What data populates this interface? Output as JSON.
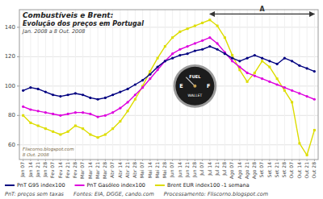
{
  "chart_data": {
    "type": "line",
    "title": [
      "Combustíveis e Brent:",
      "Evolução dos preços em Portugal"
    ],
    "subtitle": "Jan. 2008 a 8 Out. 2008",
    "categories": [
      "Jan 07",
      "Jan 14",
      "Jan 21",
      "Jan 28",
      "Fev 07",
      "Fev 14",
      "Fev 21",
      "Fev 28",
      "Mar 07",
      "Mar 14",
      "Mar 21",
      "Mar 28",
      "Abr 07",
      "Abr 14",
      "Abr 21",
      "Abr 28",
      "Mai 07",
      "Mai 14",
      "Mai 21",
      "Mai 28",
      "Jun 07",
      "Jun 14",
      "Jun 21",
      "Jun 28",
      "Jul 07",
      "Jul 14",
      "Jul 21",
      "Jul 28",
      "Ago 07",
      "Ago 14",
      "Ago 21",
      "Ago 28",
      "Set 07",
      "Set 14",
      "Set 21",
      "Set 28",
      "Out 07",
      "Out 14",
      "Out 21",
      "Out 28"
    ],
    "series": [
      {
        "name": "PnT G95 index100",
        "color": "#000080",
        "marker": "circle",
        "values": [
          97,
          99,
          98,
          96,
          94,
          93,
          94,
          95,
          94,
          92,
          91,
          92,
          94,
          96,
          98,
          101,
          104,
          108,
          113,
          117,
          119,
          121,
          122,
          124,
          125,
          127,
          125,
          122,
          119,
          117,
          119,
          121,
          119,
          117,
          115,
          119,
          117,
          114,
          112,
          110
        ]
      },
      {
        "name": "PnT Gasóleo index100",
        "color": "#dd00dd",
        "marker": "circle",
        "values": [
          86,
          84,
          83,
          82,
          81,
          80,
          81,
          82,
          82,
          81,
          79,
          80,
          82,
          85,
          89,
          94,
          99,
          105,
          111,
          117,
          122,
          125,
          127,
          129,
          131,
          133,
          129,
          123,
          117,
          113,
          109,
          107,
          105,
          103,
          101,
          99,
          97,
          95,
          93,
          91
        ]
      },
      {
        "name": "Brent EUR index100 -1 semana",
        "color": "#dddd00",
        "marker": "square",
        "values": [
          80,
          75,
          73,
          71,
          69,
          67,
          69,
          73,
          71,
          67,
          65,
          67,
          71,
          76,
          83,
          91,
          100,
          110,
          119,
          127,
          133,
          137,
          139,
          141,
          143,
          145,
          141,
          133,
          121,
          111,
          103,
          109,
          117,
          113,
          105,
          97,
          89,
          61,
          53,
          70
        ]
      }
    ],
    "ylim": [
      50,
      152
    ],
    "yticks": [
      60,
      80,
      100,
      120,
      140
    ],
    "grid": true,
    "legend": "bottom",
    "annotations": [
      {
        "text": "A",
        "x": [
          25,
          39
        ],
        "y": 149
      },
      {
        "text": [
          "FUEL",
          "WALLET",
          "E",
          "F"
        ],
        "x": 23,
        "y": 100
      },
      {
        "text": [
          "Fliscorno.blogspot.com",
          "8 Out. 2008"
        ]
      },
      {
        "text": "PnT: preços sem taxas"
      },
      {
        "text": "Fontes: EIA, DGGE, cando.com"
      },
      {
        "text": "Processamento: Fliscorno.blogspot.com"
      }
    ]
  }
}
